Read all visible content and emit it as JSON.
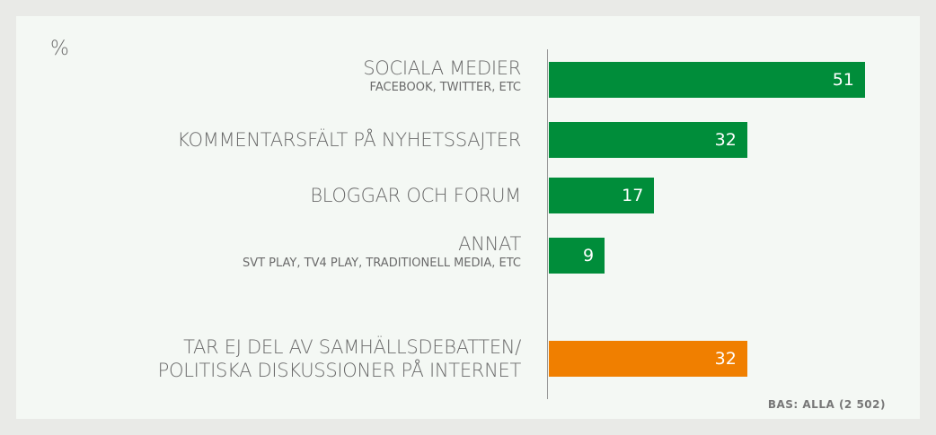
{
  "chart_data": {
    "type": "bar",
    "orientation": "horizontal",
    "unit_label": "%",
    "categories": [
      "SOCIALA MEDIER",
      "KOMMENTARSFÄLT PÅ NYHETSSAJTER",
      "BLOGGAR OCH FORUM",
      "ANNAT",
      "TAR EJ DEL AV SAMHÄLLSDEBATTEN/\nPOLITISKA DISKUSSIONER PÅ INTERNET"
    ],
    "sublabels": [
      "FACEBOOK, TWITTER, ETC",
      null,
      null,
      "SVT PLAY, TV4 PLAY, TRADITIONELL MEDIA, ETC",
      null
    ],
    "values": [
      51,
      32,
      17,
      9,
      32
    ],
    "colors": [
      "#008d3a",
      "#008d3a",
      "#008d3a",
      "#008d3a",
      "#f07f00"
    ],
    "footnote": "BAS: ALLA (2 502)"
  }
}
